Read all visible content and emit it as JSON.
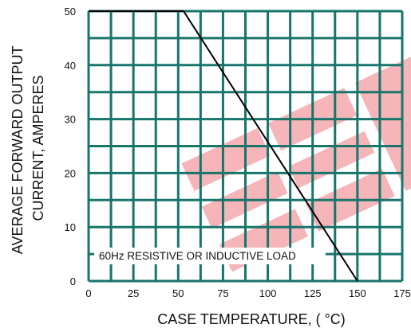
{
  "chart_data": {
    "type": "line",
    "xlabel": "CASE TEMPERATURE, ( °C)",
    "ylabel_lines": [
      "AVERAGE FORWARD OUTPUT",
      "CURRENT, AMPERES"
    ],
    "xlim": [
      0,
      175
    ],
    "ylim": [
      0,
      50
    ],
    "x_ticks": [
      "0",
      "25",
      "50",
      "75",
      "100",
      "125",
      "150",
      "175"
    ],
    "y_ticks": [
      "0",
      "10",
      "20",
      "30",
      "40",
      "50"
    ],
    "x_grid_minor_step": 12.5,
    "y_grid_minor_step": 5,
    "grid": true,
    "grid_color": "#17756b",
    "line_color": "#000000",
    "series": [
      {
        "x": [
          0,
          53,
          150
        ],
        "y": [
          50,
          50,
          0
        ]
      }
    ],
    "annotation": "60Hz RESISTIVE OR INDUCTIVE LOAD"
  }
}
